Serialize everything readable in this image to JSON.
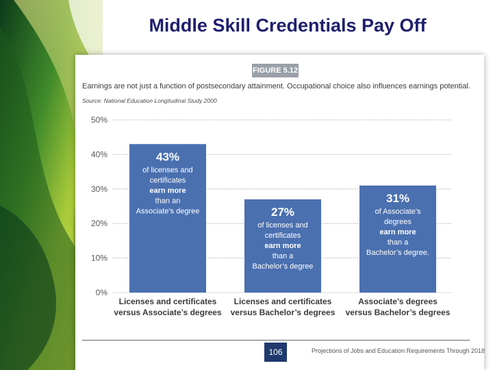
{
  "slide": {
    "title": "Middle Skill Credentials Pay Off"
  },
  "figure": {
    "label": "FIGURE 5.12",
    "caption": "Earnings are not just a function of postsecondary attainment. Occupational choice also influences earnings potential.",
    "source": "Source: National Education Longitudinal Study 2000"
  },
  "footer": {
    "page_number": "106",
    "text": "Projections of Jobs and Education Requirements Through 2018"
  },
  "colors": {
    "bar": "#4a70b0",
    "gridline": "#9e9e9e",
    "axis_text": "#555555",
    "category_text": "#3a3a3a",
    "page_box": "#1f3a6e"
  },
  "chart_data": {
    "type": "bar",
    "categories": [
      [
        "Licenses and certificates",
        "versus Associate’s degrees"
      ],
      [
        "Licenses and certificates",
        "versus Bachelor’s degrees"
      ],
      [
        "Associate’s degrees",
        "versus Bachelor’s degrees"
      ]
    ],
    "values": [
      43,
      27,
      31
    ],
    "ylim": [
      0,
      50
    ],
    "yticks": [
      "0%",
      "10%",
      "20%",
      "30%",
      "40%",
      "50%"
    ],
    "grid": true,
    "annotations": [
      {
        "pct": "43%",
        "lines": [
          {
            "text": "of licenses and",
            "bold": false
          },
          {
            "text": "certificates",
            "bold": false
          },
          {
            "text": "earn more",
            "bold": true
          },
          {
            "text": "than an",
            "bold": false
          },
          {
            "text": "Associate’s degree",
            "bold": false
          }
        ]
      },
      {
        "pct": "27%",
        "lines": [
          {
            "text": "of licenses and",
            "bold": false
          },
          {
            "text": "certificates",
            "bold": false
          },
          {
            "text": "earn more",
            "bold": true
          },
          {
            "text": "than a",
            "bold": false
          },
          {
            "text": "Bachelor’s degree",
            "bold": false
          }
        ]
      },
      {
        "pct": "31%",
        "lines": [
          {
            "text": "of Associate’s",
            "bold": false
          },
          {
            "text": "degrees",
            "bold": false
          },
          {
            "text": "earn more",
            "bold": true
          },
          {
            "text": "than a",
            "bold": false
          },
          {
            "text": "Bachelor’s degree.",
            "bold": false
          }
        ]
      }
    ]
  }
}
